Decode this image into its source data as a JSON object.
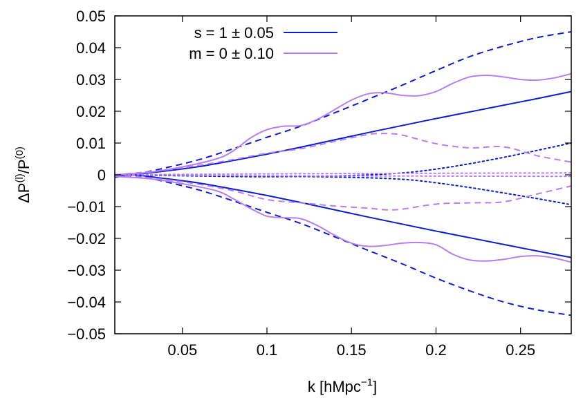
{
  "chart_data": {
    "type": "line",
    "xlabel_base": "k [hMpc",
    "xlabel_exp": "−1",
    "xlabel_close": "]",
    "ylabel_delta": "ΔP",
    "ylabel_exp1": "(l)",
    "ylabel_mid": "/P",
    "ylabel_exp2": "(0)",
    "xlim": [
      0.01,
      0.28
    ],
    "ylim": [
      -0.05,
      0.05
    ],
    "x_ticks": [
      0.05,
      0.1,
      0.15,
      0.2,
      0.25
    ],
    "x_tick_labels": [
      "0.05",
      "0.1",
      "0.15",
      "0.2",
      "0.25"
    ],
    "y_ticks": [
      -0.05,
      -0.04,
      -0.03,
      -0.02,
      -0.01,
      0,
      0.01,
      0.02,
      0.03,
      0.04,
      0.05
    ],
    "y_tick_labels": [
      "−0.05",
      "−0.04",
      "−0.03",
      "−0.02",
      "−0.01",
      "0",
      "0.01",
      "0.02",
      "0.03",
      "0.04",
      "0.05"
    ],
    "grid": false,
    "legend_position": "top-left",
    "legend": [
      {
        "label": "s = 1 ± 0.05",
        "color": "#0a1ecf"
      },
      {
        "label": "m = 0 ± 0.10",
        "color": "#b77ef0"
      }
    ],
    "series": [
      {
        "group": "s",
        "style": "solid",
        "color": "#0a1ecf",
        "x": [
          0.01,
          0.02,
          0.04,
          0.06,
          0.08,
          0.1,
          0.12,
          0.14,
          0.16,
          0.18,
          0.2,
          0.22,
          0.24,
          0.26,
          0.28
        ],
        "y": [
          -0.0008,
          0.0,
          0.0012,
          0.0026,
          0.0045,
          0.0065,
          0.0087,
          0.011,
          0.0133,
          0.0155,
          0.0177,
          0.0198,
          0.0219,
          0.024,
          0.0262
        ]
      },
      {
        "group": "s",
        "style": "solid",
        "color": "#0a1ecf",
        "x": [
          0.01,
          0.02,
          0.04,
          0.06,
          0.08,
          0.1,
          0.12,
          0.14,
          0.16,
          0.18,
          0.2,
          0.22,
          0.24,
          0.26,
          0.28
        ],
        "y": [
          -0.0008,
          0.0,
          -0.0012,
          -0.0026,
          -0.0045,
          -0.0065,
          -0.0087,
          -0.011,
          -0.0133,
          -0.0155,
          -0.0177,
          -0.0198,
          -0.0219,
          -0.024,
          -0.026
        ]
      },
      {
        "group": "s",
        "style": "dashed",
        "color": "#0a1ecf",
        "x": [
          0.01,
          0.02,
          0.04,
          0.06,
          0.08,
          0.1,
          0.12,
          0.14,
          0.16,
          0.18,
          0.2,
          0.22,
          0.24,
          0.26,
          0.28
        ],
        "y": [
          -0.0005,
          0.0,
          0.0022,
          0.0048,
          0.0082,
          0.0118,
          0.0153,
          0.0195,
          0.0238,
          0.0282,
          0.0328,
          0.0372,
          0.0405,
          0.0432,
          0.045
        ]
      },
      {
        "group": "s",
        "style": "dashed",
        "color": "#0a1ecf",
        "x": [
          0.01,
          0.02,
          0.04,
          0.06,
          0.08,
          0.1,
          0.12,
          0.14,
          0.16,
          0.18,
          0.2,
          0.22,
          0.24,
          0.26,
          0.28
        ],
        "y": [
          -0.0005,
          0.0,
          -0.0022,
          -0.0048,
          -0.0082,
          -0.0118,
          -0.0153,
          -0.0195,
          -0.0238,
          -0.028,
          -0.0325,
          -0.0365,
          -0.04,
          -0.0425,
          -0.0442
        ]
      },
      {
        "group": "s",
        "style": "dotted",
        "color": "#0a1ecf",
        "x": [
          0.01,
          0.05,
          0.1,
          0.15,
          0.18,
          0.2,
          0.22,
          0.24,
          0.26,
          0.28
        ],
        "y": [
          0.0,
          -0.0003,
          -0.0006,
          -0.0002,
          0.0006,
          0.0018,
          0.0035,
          0.0055,
          0.0077,
          0.01
        ]
      },
      {
        "group": "s",
        "style": "dotted",
        "color": "#0a1ecf",
        "x": [
          0.01,
          0.05,
          0.1,
          0.15,
          0.18,
          0.2,
          0.22,
          0.24,
          0.26,
          0.28
        ],
        "y": [
          0.0,
          -0.0002,
          -0.0004,
          -0.0008,
          -0.0014,
          -0.0025,
          -0.004,
          -0.0057,
          -0.0075,
          -0.0094
        ]
      },
      {
        "group": "m",
        "style": "solid",
        "color": "#b77ef0",
        "x": [
          0.01,
          0.03,
          0.05,
          0.07,
          0.08,
          0.09,
          0.1,
          0.11,
          0.12,
          0.13,
          0.14,
          0.15,
          0.16,
          0.17,
          0.18,
          0.19,
          0.2,
          0.21,
          0.22,
          0.23,
          0.24,
          0.25,
          0.26,
          0.27,
          0.28
        ],
        "y": [
          0.0,
          0.0008,
          0.0025,
          0.005,
          0.0075,
          0.0115,
          0.0142,
          0.0153,
          0.0155,
          0.0175,
          0.0205,
          0.0235,
          0.0255,
          0.0258,
          0.025,
          0.0249,
          0.0262,
          0.0288,
          0.0308,
          0.0313,
          0.0308,
          0.03,
          0.0298,
          0.0305,
          0.0318
        ]
      },
      {
        "group": "m",
        "style": "solid",
        "color": "#b77ef0",
        "x": [
          0.01,
          0.03,
          0.05,
          0.07,
          0.08,
          0.09,
          0.1,
          0.11,
          0.12,
          0.13,
          0.14,
          0.15,
          0.16,
          0.17,
          0.18,
          0.19,
          0.2,
          0.21,
          0.22,
          0.23,
          0.24,
          0.25,
          0.26,
          0.27,
          0.28
        ],
        "y": [
          -0.0005,
          -0.0012,
          -0.0028,
          -0.005,
          -0.0075,
          -0.0105,
          -0.013,
          -0.0135,
          -0.0138,
          -0.016,
          -0.019,
          -0.0215,
          -0.0225,
          -0.0222,
          -0.0215,
          -0.0213,
          -0.022,
          -0.025,
          -0.0268,
          -0.0271,
          -0.0266,
          -0.0257,
          -0.0255,
          -0.0262,
          -0.0275
        ]
      },
      {
        "group": "m",
        "style": "dashed",
        "color": "#b77ef0",
        "x": [
          0.01,
          0.04,
          0.06,
          0.08,
          0.1,
          0.12,
          0.14,
          0.16,
          0.17,
          0.18,
          0.2,
          0.22,
          0.24,
          0.26,
          0.28
        ],
        "y": [
          0.0,
          0.0015,
          0.003,
          0.0048,
          0.0068,
          0.0082,
          0.0105,
          0.0127,
          0.013,
          0.0125,
          0.0098,
          0.0085,
          0.0088,
          0.006,
          0.004
        ]
      },
      {
        "group": "m",
        "style": "dashed",
        "color": "#b77ef0",
        "x": [
          0.01,
          0.04,
          0.06,
          0.08,
          0.1,
          0.12,
          0.14,
          0.16,
          0.17,
          0.18,
          0.2,
          0.22,
          0.24,
          0.26,
          0.28
        ],
        "y": [
          0.0,
          -0.0015,
          -0.003,
          -0.005,
          -0.0078,
          -0.0088,
          -0.0098,
          -0.0105,
          -0.011,
          -0.0108,
          -0.0092,
          -0.0088,
          -0.0085,
          -0.006,
          -0.0035
        ]
      },
      {
        "group": "m",
        "style": "dotted",
        "color": "#b77ef0",
        "x": [
          0.01,
          0.1,
          0.2,
          0.28
        ],
        "y": [
          0.0,
          0.0003,
          0.0005,
          0.0006
        ]
      },
      {
        "group": "m",
        "style": "dotted",
        "color": "#b77ef0",
        "x": [
          0.01,
          0.1,
          0.2,
          0.28
        ],
        "y": [
          0.0,
          -0.0003,
          -0.0004,
          -0.0005
        ]
      }
    ]
  }
}
